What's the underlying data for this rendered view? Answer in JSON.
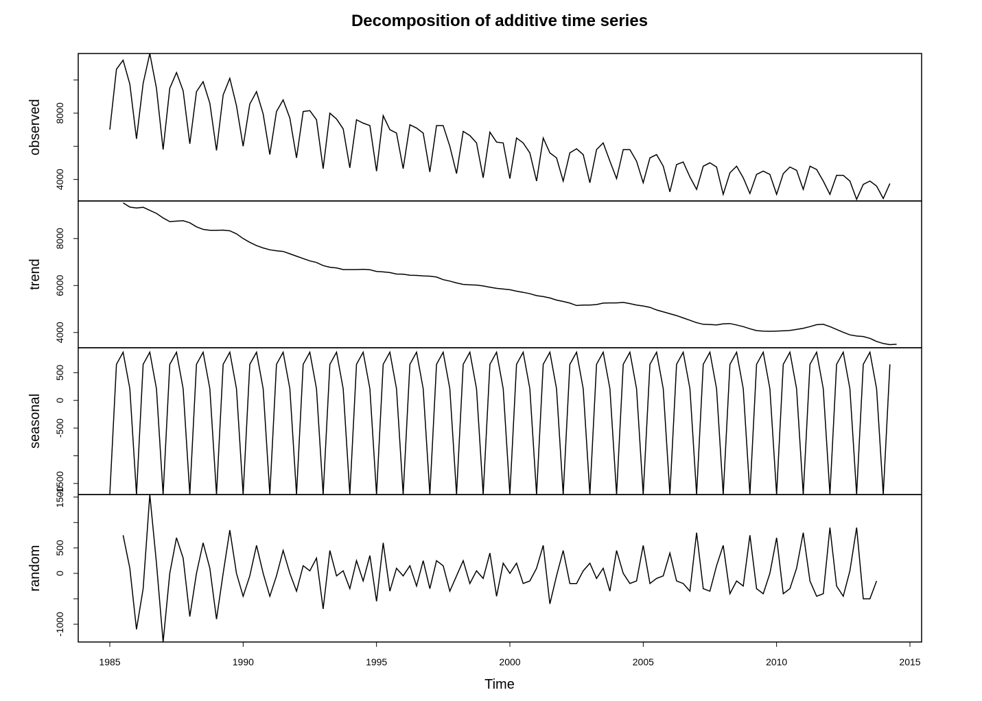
{
  "chart_data": {
    "type": "line",
    "title": "Decomposition of additive time series",
    "xlabel": "Time",
    "x_ticks": [
      1985,
      1990,
      1995,
      2000,
      2005,
      2010,
      2015
    ],
    "xlim": [
      1985,
      2015
    ],
    "start": 1985.0,
    "frequency": 4,
    "panels": [
      {
        "name": "observed",
        "ylabel": "observed",
        "ylim": [
          2700,
          11600
        ],
        "y_ticks": [
          4000,
          6000,
          8000,
          10000
        ],
        "y_tick_labels": [
          "4000",
          "",
          "8000",
          ""
        ],
        "values": [
          7000,
          10650,
          11200,
          9750,
          6450,
          9800,
          11600,
          9500,
          5800,
          9500,
          10450,
          9350,
          6150,
          9300,
          9900,
          8600,
          5750,
          9100,
          10100,
          8450,
          6000,
          8550,
          9300,
          7950,
          5500,
          8100,
          8800,
          7700,
          5300,
          8100,
          8150,
          7600,
          4650,
          8000,
          7650,
          7050,
          4700,
          7600,
          7400,
          7250,
          4500,
          7850,
          7000,
          6800,
          4650,
          7300,
          7100,
          6800,
          4450,
          7250,
          7250,
          6000,
          4350,
          6900,
          6650,
          6200,
          4100,
          6850,
          6250,
          6200,
          4050,
          6500,
          6200,
          5600,
          3900,
          6500,
          5600,
          5300,
          3900,
          5600,
          5850,
          5500,
          3800,
          5800,
          6200,
          5100,
          4050,
          5800,
          5800,
          5100,
          3800,
          5300,
          5500,
          4800,
          3250,
          4900,
          5050,
          4150,
          3400,
          4800,
          5000,
          4750,
          3100,
          4400,
          4800,
          4100,
          3150,
          4300,
          4500,
          4300,
          3100,
          4350,
          4750,
          4550,
          3400,
          4800,
          4600,
          3900,
          3100,
          4250,
          4250,
          3900,
          2800,
          3700,
          3900,
          3600,
          2850,
          3750
        ]
      },
      {
        "name": "trend",
        "ylabel": "trend",
        "ylim": [
          3350,
          9600
        ],
        "y_ticks": [
          4000,
          6000,
          8000
        ],
        "y_tick_labels": [
          "4000",
          "6000",
          "8000"
        ],
        "values": [
          null,
          null,
          9520,
          9340,
          9300,
          9330,
          9200,
          9070,
          8880,
          8720,
          8740,
          8760,
          8670,
          8500,
          8390,
          8350,
          8350,
          8360,
          8330,
          8200,
          8000,
          7840,
          7700,
          7600,
          7520,
          7480,
          7450,
          7350,
          7250,
          7150,
          7050,
          6980,
          6850,
          6780,
          6750,
          6680,
          6680,
          6680,
          6690,
          6670,
          6600,
          6580,
          6550,
          6490,
          6480,
          6440,
          6430,
          6410,
          6400,
          6360,
          6250,
          6190,
          6110,
          6050,
          6030,
          6020,
          5980,
          5930,
          5880,
          5850,
          5820,
          5760,
          5710,
          5650,
          5570,
          5530,
          5470,
          5380,
          5320,
          5250,
          5150,
          5170,
          5170,
          5190,
          5250,
          5260,
          5260,
          5280,
          5230,
          5170,
          5130,
          5070,
          4960,
          4880,
          4800,
          4720,
          4620,
          4520,
          4420,
          4350,
          4340,
          4320,
          4370,
          4380,
          4320,
          4250,
          4160,
          4080,
          4060,
          4050,
          4060,
          4070,
          4090,
          4130,
          4180,
          4250,
          4330,
          4350,
          4250,
          4130,
          4010,
          3900,
          3850,
          3830,
          3750,
          3620,
          3530,
          3480,
          3500,
          null,
          null
        ]
      },
      {
        "name": "seasonal",
        "ylabel": "seasonal",
        "ylim": [
          -1700,
          950
        ],
        "y_ticks": [
          -1500,
          -1000,
          -500,
          0,
          500
        ],
        "y_tick_labels": [
          "-1500",
          "",
          "-500",
          "0",
          "500"
        ],
        "pattern": [
          -1700,
          650,
          870,
          210
        ]
      },
      {
        "name": "random",
        "ylabel": "random",
        "ylim": [
          -1350,
          1550
        ],
        "y_ticks": [
          -1000,
          -500,
          0,
          500,
          1000,
          1500
        ],
        "y_tick_labels": [
          "-1000",
          "",
          "0",
          "500",
          "",
          "1500"
        ],
        "values": [
          null,
          null,
          750,
          100,
          -1100,
          -300,
          1550,
          200,
          -1350,
          0,
          700,
          300,
          -850,
          0,
          600,
          100,
          -900,
          0,
          850,
          0,
          -450,
          -50,
          550,
          0,
          -450,
          -50,
          450,
          0,
          -350,
          150,
          50,
          300,
          -700,
          450,
          -50,
          50,
          -300,
          250,
          -150,
          350,
          -550,
          600,
          -350,
          100,
          -50,
          150,
          -250,
          250,
          -300,
          250,
          150,
          -350,
          -50,
          250,
          -200,
          50,
          -100,
          400,
          -450,
          200,
          0,
          200,
          -200,
          -150,
          100,
          550,
          -600,
          -50,
          450,
          -200,
          -200,
          50,
          200,
          -100,
          100,
          -350,
          450,
          0,
          -200,
          -150,
          550,
          -200,
          -100,
          -50,
          400,
          -150,
          -200,
          -350,
          800,
          -300,
          -350,
          150,
          550,
          -400,
          -150,
          -250,
          750,
          -300,
          -400,
          0,
          700,
          -400,
          -300,
          100,
          800,
          -150,
          -450,
          -400,
          900,
          -250,
          -450,
          50,
          900,
          -500,
          -500,
          -150,
          null,
          null
        ]
      }
    ]
  }
}
